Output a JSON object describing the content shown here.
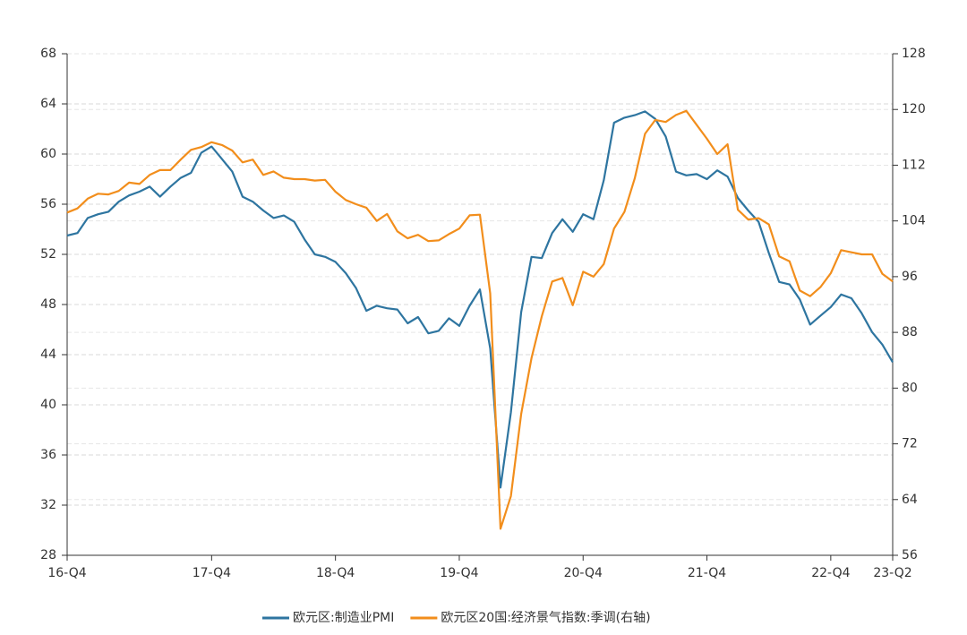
{
  "chart_data": {
    "type": "line",
    "categories": [
      "16-Q4",
      null,
      null,
      null,
      null,
      null,
      null,
      null,
      null,
      null,
      null,
      null,
      null,
      null,
      "17-Q4",
      null,
      null,
      null,
      null,
      null,
      null,
      null,
      null,
      null,
      null,
      null,
      "18-Q4",
      null,
      null,
      null,
      null,
      null,
      null,
      null,
      null,
      null,
      null,
      null,
      "19-Q4",
      null,
      null,
      null,
      null,
      null,
      null,
      null,
      null,
      null,
      null,
      null,
      "20-Q4",
      null,
      null,
      null,
      null,
      null,
      null,
      null,
      null,
      null,
      null,
      null,
      "21-Q4",
      null,
      null,
      null,
      null,
      null,
      null,
      null,
      null,
      null,
      null,
      null,
      "22-Q4",
      null,
      null,
      null,
      null,
      null,
      "23-Q2"
    ],
    "series": [
      {
        "name": "欧元区:制造业PMI",
        "color": "#2e75a0",
        "values": [
          53.5,
          53.7,
          54.9,
          55.2,
          55.4,
          56.2,
          56.7,
          57.0,
          57.4,
          56.6,
          57.4,
          58.1,
          58.5,
          60.1,
          60.6,
          59.6,
          58.6,
          56.6,
          56.2,
          55.5,
          54.9,
          55.1,
          54.6,
          53.2,
          52.0,
          51.8,
          51.4,
          50.5,
          49.3,
          47.5,
          47.9,
          47.7,
          47.6,
          46.5,
          47.0,
          45.7,
          45.9,
          46.9,
          46.3,
          47.9,
          49.2,
          44.5,
          33.4,
          39.4,
          47.4,
          51.8,
          51.7,
          53.7,
          54.8,
          53.8,
          55.2,
          54.8,
          57.9,
          62.5,
          62.9,
          63.1,
          63.4,
          62.8,
          61.4,
          58.6,
          58.3,
          58.4,
          58.0,
          58.7,
          58.2,
          56.5,
          55.5,
          54.6,
          52.1,
          49.8,
          49.6,
          48.4,
          46.4,
          47.1,
          47.8,
          48.8,
          48.5,
          47.3,
          45.8,
          44.8,
          43.4
        ]
      },
      {
        "name": "欧元区20国:经济景气指数:季调(右轴)",
        "color": "#f28e1c",
        "axis": "y2",
        "values": [
          105.2,
          105.8,
          107.2,
          107.9,
          107.8,
          108.3,
          109.5,
          109.3,
          110.6,
          111.3,
          111.3,
          112.8,
          114.2,
          114.6,
          115.3,
          114.9,
          114.1,
          112.4,
          112.8,
          110.6,
          111.1,
          110.2,
          110.0,
          110.0,
          109.8,
          109.9,
          108.2,
          107.0,
          106.4,
          105.9,
          104.0,
          105.0,
          102.5,
          101.5,
          102.0,
          101.1,
          101.2,
          102.1,
          102.9,
          104.8,
          104.9,
          93.6,
          59.8,
          64.5,
          76.3,
          84.3,
          90.3,
          95.3,
          95.8,
          91.9,
          96.7,
          96.0,
          97.8,
          102.9,
          105.3,
          110.1,
          116.5,
          118.5,
          118.2,
          119.2,
          119.8,
          117.8,
          115.8,
          113.6,
          115.0,
          105.6,
          104.2,
          104.4,
          103.5,
          98.9,
          98.2,
          94.0,
          93.2,
          94.5,
          96.5,
          99.8,
          99.5,
          99.2,
          99.2,
          96.4,
          95.3
        ]
      }
    ],
    "ylim": [
      28,
      68
    ],
    "yticks": [
      28,
      32,
      36,
      40,
      44,
      48,
      52,
      56,
      60,
      64,
      68
    ],
    "y2lim": [
      56,
      128
    ],
    "y2ticks": [
      56,
      64,
      72,
      80,
      88,
      96,
      104,
      112,
      120,
      128
    ],
    "grid": true
  }
}
